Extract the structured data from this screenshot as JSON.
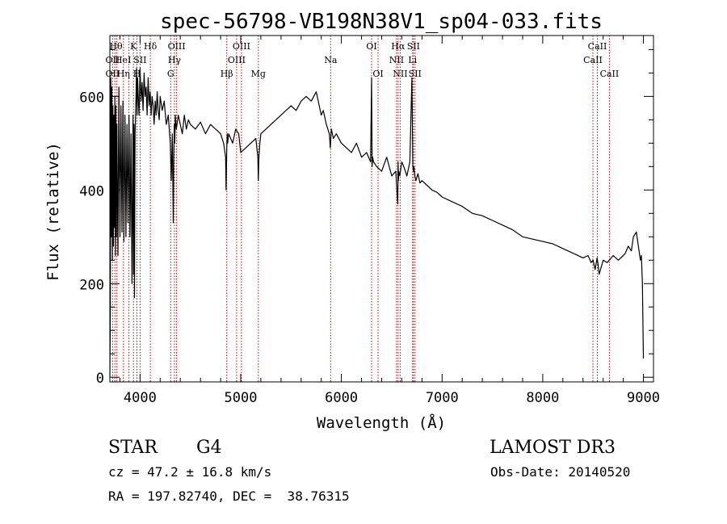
{
  "chart_data": {
    "type": "line",
    "title": "spec-56798-VB198N38V1_sp04-033.fits",
    "xlabel": "Wavelength (Å)",
    "ylabel": "Flux (relative)",
    "xlim": [
      3700,
      9100
    ],
    "ylim": [
      -10,
      730
    ],
    "x_ticks": [
      4000,
      5000,
      6000,
      7000,
      8000,
      9000
    ],
    "y_ticks": [
      0,
      200,
      400,
      600
    ],
    "series": [
      {
        "name": "flux",
        "x": [
          3700,
          3705,
          3710,
          3715,
          3720,
          3725,
          3730,
          3735,
          3740,
          3745,
          3750,
          3755,
          3760,
          3765,
          3770,
          3780,
          3790,
          3800,
          3810,
          3820,
          3830,
          3840,
          3850,
          3860,
          3870,
          3880,
          3890,
          3900,
          3910,
          3920,
          3930,
          3935,
          3940,
          3945,
          3950,
          3960,
          3965,
          3970,
          3975,
          3980,
          3990,
          4000,
          4010,
          4020,
          4030,
          4040,
          4050,
          4060,
          4070,
          4080,
          4090,
          4100,
          4110,
          4120,
          4130,
          4140,
          4150,
          4160,
          4170,
          4180,
          4190,
          4200,
          4220,
          4240,
          4260,
          4280,
          4300,
          4310,
          4320,
          4330,
          4335,
          4340,
          4345,
          4350,
          4360,
          4380,
          4400,
          4420,
          4440,
          4460,
          4480,
          4500,
          4550,
          4600,
          4650,
          4700,
          4750,
          4800,
          4830,
          4850,
          4855,
          4861,
          4866,
          4870,
          4880,
          4900,
          4920,
          4950,
          4980,
          5000,
          5050,
          5100,
          5150,
          5170,
          5175,
          5180,
          5190,
          5200,
          5250,
          5300,
          5350,
          5400,
          5450,
          5500,
          5550,
          5600,
          5650,
          5700,
          5750,
          5780,
          5800,
          5820,
          5850,
          5880,
          5890,
          5900,
          5920,
          5950,
          6000,
          6050,
          6100,
          6150,
          6200,
          6250,
          6290,
          6300,
          6305,
          6310,
          6320,
          6350,
          6400,
          6450,
          6500,
          6540,
          6560,
          6563,
          6566,
          6570,
          6580,
          6600,
          6620,
          6650,
          6680,
          6700,
          6710,
          6716,
          6720,
          6730,
          6740,
          6760,
          6780,
          6800,
          6850,
          6900,
          6950,
          7000,
          7100,
          7200,
          7300,
          7400,
          7500,
          7600,
          7700,
          7800,
          7900,
          8000,
          8100,
          8200,
          8300,
          8400,
          8450,
          8480,
          8500,
          8520,
          8540,
          8550,
          8560,
          8600,
          8640,
          8660,
          8680,
          8700,
          8750,
          8800,
          8820,
          8850,
          8880,
          8900,
          8930,
          8950,
          8970,
          8980,
          8990,
          9000
        ],
        "values": [
          0,
          150,
          640,
          300,
          620,
          250,
          580,
          280,
          560,
          320,
          600,
          260,
          580,
          300,
          540,
          260,
          620,
          300,
          580,
          310,
          590,
          290,
          560,
          300,
          540,
          330,
          560,
          300,
          520,
          200,
          560,
          220,
          540,
          170,
          520,
          600,
          660,
          560,
          640,
          610,
          560,
          660,
          590,
          630,
          570,
          650,
          600,
          620,
          560,
          640,
          580,
          610,
          560,
          600,
          580,
          540,
          590,
          560,
          610,
          570,
          550,
          600,
          570,
          590,
          540,
          560,
          500,
          420,
          520,
          330,
          470,
          540,
          500,
          560,
          530,
          560,
          540,
          520,
          560,
          530,
          550,
          540,
          530,
          545,
          520,
          540,
          530,
          520,
          500,
          470,
          400,
          490,
          520,
          500,
          520,
          510,
          500,
          530,
          520,
          480,
          490,
          500,
          510,
          470,
          420,
          470,
          500,
          520,
          530,
          540,
          550,
          560,
          570,
          580,
          570,
          590,
          600,
          590,
          610,
          580,
          560,
          570,
          540,
          520,
          490,
          530,
          510,
          520,
          500,
          490,
          480,
          500,
          470,
          480,
          460,
          640,
          450,
          470,
          460,
          450,
          440,
          470,
          430,
          440,
          370,
          460,
          420,
          440,
          430,
          460,
          450,
          430,
          460,
          640,
          450,
          440,
          450,
          430,
          420,
          435,
          415,
          420,
          410,
          400,
          395,
          385,
          375,
          365,
          350,
          345,
          335,
          325,
          315,
          300,
          295,
          290,
          285,
          275,
          265,
          255,
          260,
          245,
          250,
          230,
          255,
          240,
          220,
          250,
          245,
          250,
          255,
          260,
          250,
          260,
          265,
          280,
          270,
          300,
          310,
          280,
          250,
          260,
          200,
          40
        ]
      }
    ],
    "lines": [
      {
        "w": 3727,
        "labels": [
          "OII",
          "OII"
        ]
      },
      {
        "w": 3750,
        "labels": [
          "Hθ"
        ]
      },
      {
        "w": 3770,
        "labels": [
          "Hη"
        ]
      },
      {
        "w": 3835,
        "labels": [
          "Hη"
        ]
      },
      {
        "w": 3889,
        "labels": [
          "HeI"
        ]
      },
      {
        "w": 3934,
        "labels": [
          "K"
        ]
      },
      {
        "w": 3969,
        "labels": [
          "H"
        ]
      },
      {
        "w": 4000,
        "labels": [
          "SII"
        ]
      },
      {
        "w": 4102,
        "labels": [
          "Hδ"
        ]
      },
      {
        "w": 4304,
        "labels": [
          "G"
        ]
      },
      {
        "w": 4341,
        "labels": [
          "Hγ"
        ]
      },
      {
        "w": 4363,
        "labels": [
          "OIII"
        ]
      },
      {
        "w": 4861,
        "labels": [
          "Hβ"
        ]
      },
      {
        "w": 4959,
        "labels": [
          "OIII"
        ]
      },
      {
        "w": 5007,
        "labels": [
          "OIII"
        ]
      },
      {
        "w": 5175,
        "labels": [
          "Mg"
        ]
      },
      {
        "w": 5893,
        "labels": [
          "Na"
        ]
      },
      {
        "w": 6300,
        "labels": [
          "OI"
        ]
      },
      {
        "w": 6364,
        "labels": [
          "OI"
        ]
      },
      {
        "w": 6548,
        "labels": [
          "NII"
        ]
      },
      {
        "w": 6563,
        "labels": [
          "Hα"
        ]
      },
      {
        "w": 6584,
        "labels": [
          "NII"
        ]
      },
      {
        "w": 6707,
        "labels": [
          "Li"
        ]
      },
      {
        "w": 6716,
        "labels": [
          "SII"
        ]
      },
      {
        "w": 6731,
        "labels": [
          "SII"
        ]
      },
      {
        "w": 8498,
        "labels": [
          "CaII"
        ]
      },
      {
        "w": 8542,
        "labels": [
          "CaII"
        ]
      },
      {
        "w": 8662,
        "labels": [
          "CaII"
        ]
      }
    ],
    "line_labels": [
      {
        "text": "Hθ",
        "w": 3760,
        "row": 0
      },
      {
        "text": "K",
        "w": 3934,
        "row": 0
      },
      {
        "text": "Hδ",
        "w": 4102,
        "row": 0
      },
      {
        "text": "OIII",
        "w": 4363,
        "row": 0
      },
      {
        "text": "OIII",
        "w": 5007,
        "row": 0
      },
      {
        "text": "OI",
        "w": 6300,
        "row": 0
      },
      {
        "text": "Hα",
        "w": 6563,
        "row": 0
      },
      {
        "text": "SII",
        "w": 6716,
        "row": 0
      },
      {
        "text": "CaII",
        "w": 8542,
        "row": 0
      },
      {
        "text": "OII",
        "w": 3727,
        "row": 1
      },
      {
        "text": "HeI",
        "w": 3830,
        "row": 1
      },
      {
        "text": "SII",
        "w": 4000,
        "row": 1
      },
      {
        "text": "Hγ",
        "w": 4341,
        "row": 1
      },
      {
        "text": "OIII",
        "w": 4959,
        "row": 1
      },
      {
        "text": "Na",
        "w": 5893,
        "row": 1
      },
      {
        "text": "NII",
        "w": 6548,
        "row": 1
      },
      {
        "text": "Li",
        "w": 6707,
        "row": 1
      },
      {
        "text": "CaII",
        "w": 8498,
        "row": 1
      },
      {
        "text": "OII",
        "w": 3727,
        "row": 2
      },
      {
        "text": "Hη",
        "w": 3835,
        "row": 2
      },
      {
        "text": "H",
        "w": 3969,
        "row": 2
      },
      {
        "text": "G",
        "w": 4304,
        "row": 2
      },
      {
        "text": "Hβ",
        "w": 4861,
        "row": 2
      },
      {
        "text": "Mg",
        "w": 5175,
        "row": 2
      },
      {
        "text": "OI",
        "w": 6364,
        "row": 2
      },
      {
        "text": "NII",
        "w": 6584,
        "row": 2
      },
      {
        "text": "SII",
        "w": 6731,
        "row": 2
      },
      {
        "text": "CaII",
        "w": 8662,
        "row": 2
      }
    ]
  },
  "info": {
    "class": "STAR",
    "subclass": "G4",
    "survey": "LAMOST DR3",
    "cz": "cz = 47.2 ± 16.8 km/s",
    "obs_date": "Obs-Date: 20140520",
    "coords": "RA = 197.82740, DEC =  38.76315"
  },
  "colors": {
    "line_marker": "#cc0000",
    "spectrum": "#000000"
  }
}
